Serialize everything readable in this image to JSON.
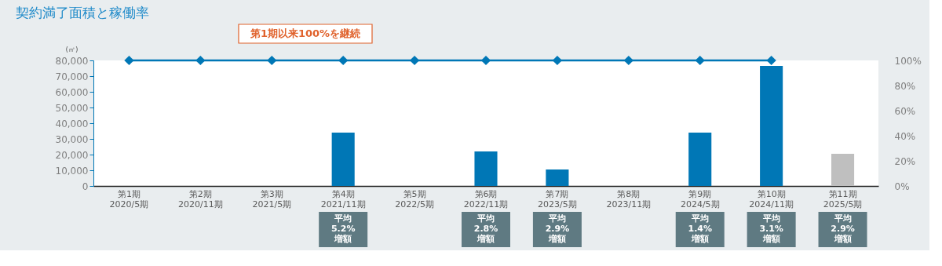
{
  "chart_data": {
    "type": "bar",
    "title": "契約満了面積と稼働率",
    "ylabel": "(㎡)",
    "categories": [
      "第1期\n2020/5期",
      "第2期\n2020/11期",
      "第3期\n2021/5期",
      "第4期\n2021/11期",
      "第5期\n2022/5期",
      "第6期\n2022/11期",
      "第7期\n2023/5期",
      "第8期\n2023/11期",
      "第9期\n2024/5期",
      "第10期\n2024/11期",
      "第11期\n2025/5期"
    ],
    "series": [
      {
        "colors": [
          "#0077b6",
          "#0077b6",
          "#0077b6",
          "#0077b6",
          "#0077b6",
          "#0077b6",
          "#0077b6",
          "#0077b6",
          "#0077b6",
          "#0077b6",
          "#bfbfbf"
        ],
        "values": [
          null,
          null,
          null,
          34000,
          null,
          22000,
          10500,
          null,
          34000,
          76500,
          20500
        ]
      },
      {
        "type": "line",
        "axis": "y2",
        "color": "#0077b6",
        "marker": "diamond",
        "values": [
          100,
          100,
          100,
          100,
          100,
          100,
          100,
          100,
          100,
          100,
          null
        ]
      }
    ],
    "ylim": [
      0,
      80000
    ],
    "yticks": [
      0,
      {
        "value": 10000,
        "label": "10,000"
      },
      {
        "value": 20000,
        "label": "20,000"
      },
      {
        "value": 30000,
        "label": "30,000"
      },
      {
        "value": 40000,
        "label": "40,000"
      },
      {
        "value": 50000,
        "label": "50,000"
      },
      {
        "value": 60000,
        "label": "60,000"
      },
      {
        "value": 70000,
        "label": "70,000"
      },
      {
        "value": 80000,
        "label": "80,000"
      }
    ],
    "y2lim": [
      0,
      100
    ],
    "y2ticks": [
      {
        "value": 0,
        "label": "0%"
      },
      {
        "value": 20,
        "label": "20%"
      },
      {
        "value": 40,
        "label": "40%"
      },
      {
        "value": 60,
        "label": "60%"
      },
      {
        "value": 80,
        "label": "80%"
      },
      {
        "value": 100,
        "label": "100%"
      }
    ],
    "grid": false,
    "annotations": [
      "第1期以来100%を継続",
      "平均\n5.2%\n増額",
      "平均\n2.8%\n増額",
      "平均\n2.9%\n増額",
      "平均\n1.4%\n増額",
      "平均\n3.1%\n増額",
      "平均\n2.9%\n増額"
    ]
  }
}
